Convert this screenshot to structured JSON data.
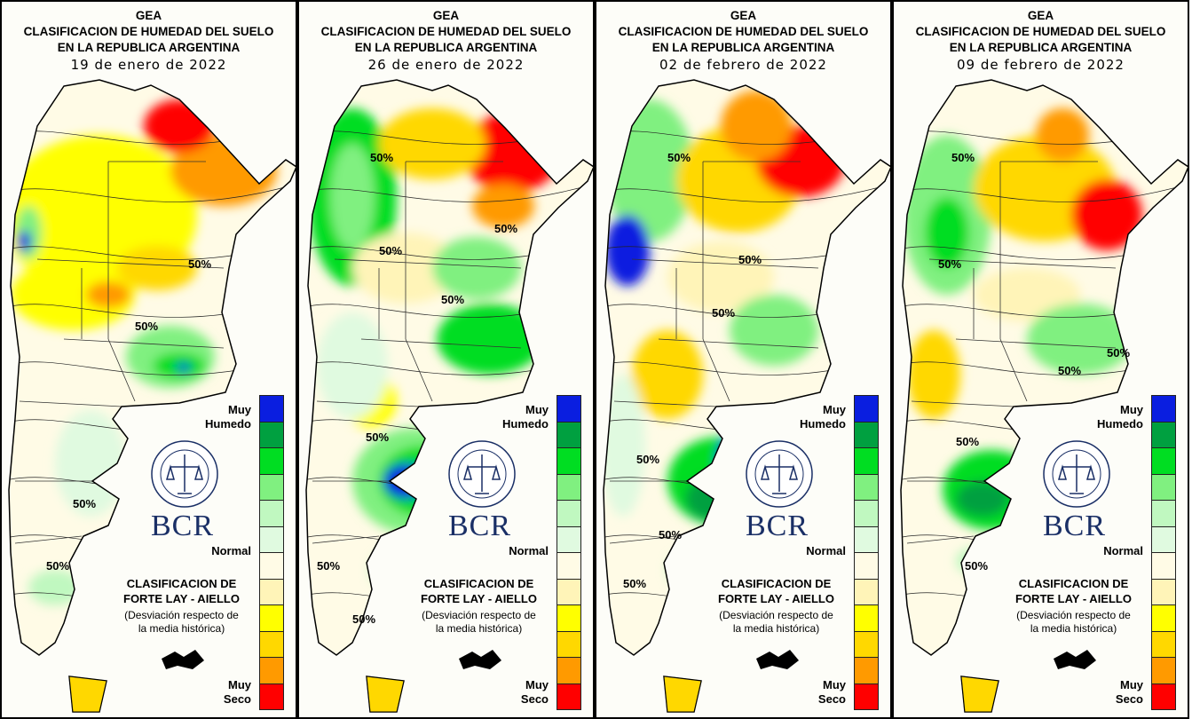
{
  "header": {
    "org": "GEA",
    "line1": "CLASIFICACION DE HUMEDAD DEL SUELO",
    "line2": "EN LA REPUBLICA ARGENTINA"
  },
  "panels": [
    {
      "date": "19 de enero de 2022",
      "contour_labels": [
        "50%",
        "50%",
        "50%",
        "50%"
      ]
    },
    {
      "date": "26 de enero de 2022",
      "contour_labels": [
        "50%",
        "50%",
        "50%",
        "50%",
        "50%",
        "50%",
        "50%"
      ]
    },
    {
      "date": "02 de febrero de 2022",
      "contour_labels": [
        "50%",
        "50%",
        "50%",
        "50%",
        "50%",
        "50%"
      ]
    },
    {
      "date": "09 de febrero de 2022",
      "contour_labels": [
        "50%",
        "50%",
        "50%",
        "50%",
        "50%",
        "50%"
      ]
    }
  ],
  "legend": {
    "wet_label_1": "Muy",
    "wet_label_2": "Humedo",
    "normal_label": "Normal",
    "dry_label_1": "Muy",
    "dry_label_2": "Seco",
    "colors": [
      "#0a1ee0",
      "#00a040",
      "#00dd22",
      "#80f080",
      "#c0f8c0",
      "#e0fae0",
      "#fffbe6",
      "#fff4b8",
      "#ffff00",
      "#ffd800",
      "#ff9a00",
      "#ff0000"
    ]
  },
  "branding": {
    "seal_text": "BOLSA DE COMERCIO DE ROSARIO",
    "logo": "BCR"
  },
  "method": {
    "line1": "CLASIFICACION DE",
    "line2": "FORTE LAY - AIELLO",
    "note1": "(Desviación respecto de",
    "note2": "la media histórica)"
  }
}
